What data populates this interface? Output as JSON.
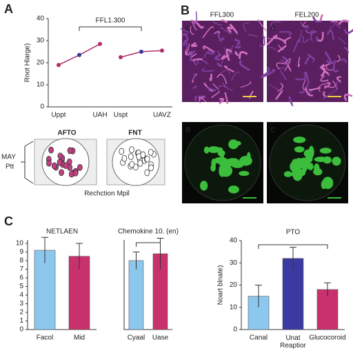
{
  "figure": {
    "panel_labels": [
      "A",
      "B",
      "C"
    ],
    "diagram": {
      "left_title": "AFTO",
      "right_title": "FNT",
      "side_label_1": "MAY",
      "side_label_2": "Ptt",
      "caption": "Rechction Mpil"
    },
    "images": {
      "col_titles": [
        "FFL300",
        "FEL200"
      ],
      "letters": [
        "C",
        "C",
        "B",
        "C"
      ]
    }
  },
  "chart_data": [
    {
      "type": "line",
      "annotation": "FFL1.300",
      "y_label": "Rnot Hlarge)",
      "categories": [
        "Uppt",
        null,
        "UAH",
        "Uspt",
        null,
        "UAVZ"
      ],
      "series": [
        {
          "color": "#b0306a",
          "values": [
            19,
            23.5,
            28.5,
            null,
            null,
            null
          ]
        },
        {
          "color": "#b0306a",
          "values": [
            null,
            null,
            null,
            22.5,
            25,
            25.5
          ]
        }
      ],
      "marker_colors": [
        "#b0306a",
        "#3a3a9a",
        "#b0306a",
        "#b0306a",
        "#3a3a9a",
        "#b0306a"
      ],
      "ylim": [
        0,
        40
      ],
      "yticks": [
        0,
        10,
        20,
        30,
        40
      ]
    },
    {
      "type": "bar",
      "title": "NETLAEN",
      "categories": [
        "Facol",
        "Mid"
      ],
      "values": [
        9.2,
        8.5
      ],
      "errors": [
        1.5,
        1.5
      ],
      "colors": [
        "#8cc8ee",
        "#c8306e"
      ],
      "ylim": [
        0,
        10.4
      ],
      "yticks": [
        0,
        1,
        2,
        3,
        4,
        5,
        6,
        7,
        8,
        9,
        10
      ]
    },
    {
      "type": "bar",
      "title": "Chemokine 10. (en)",
      "categories": [
        "Cyaal",
        "Uase"
      ],
      "values": [
        8.0,
        8.8
      ],
      "errors": [
        1.0,
        1.8
      ],
      "colors": [
        "#8cc8ee",
        "#c8306e"
      ],
      "ylim": [
        0,
        10.4
      ]
    },
    {
      "type": "bar",
      "title": "PTO",
      "y_label": "Noart blnate)",
      "categories": [
        "Canal",
        "Unat Reaptior",
        "Glucocoroid"
      ],
      "values": [
        15,
        32,
        18
      ],
      "errors": [
        5,
        5,
        3
      ],
      "colors": [
        "#8cc8ee",
        "#3a3aa0",
        "#c8306e"
      ],
      "ylim": [
        0,
        40
      ],
      "yticks": [
        0,
        10,
        20,
        30,
        40
      ]
    }
  ]
}
